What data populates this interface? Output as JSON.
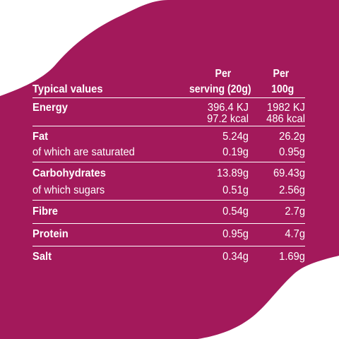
{
  "colors": {
    "background": "#a3195b",
    "page": "#ffffff",
    "text": "#ffffff"
  },
  "header": {
    "typical_values": "Typical values",
    "per_serving_line1": "Per",
    "per_serving_line2": "serving (20g)",
    "per_100_line1": "Per",
    "per_100_line2": "100g"
  },
  "rows": [
    {
      "label": "Energy",
      "serving": "396.4 KJ",
      "per100": "1982 KJ",
      "serving2": "97.2 kcal",
      "per100_2": "486 kcal"
    },
    {
      "label": "Fat",
      "serving": "5.24g",
      "per100": "26.2g"
    },
    {
      "label": "of which are saturated",
      "serving": "0.19g",
      "per100": "0.95g"
    },
    {
      "label": "Carbohydrates",
      "serving": "13.89g",
      "per100": "69.43g"
    },
    {
      "label": "of which sugars",
      "serving": "0.51g",
      "per100": "2.56g"
    },
    {
      "label": "Fibre",
      "serving": "0.54g",
      "per100": "2.7g"
    },
    {
      "label": "Protein",
      "serving": "0.95g",
      "per100": "4.7g"
    },
    {
      "label": "Salt",
      "serving": "0.34g",
      "per100": "1.69g"
    }
  ]
}
